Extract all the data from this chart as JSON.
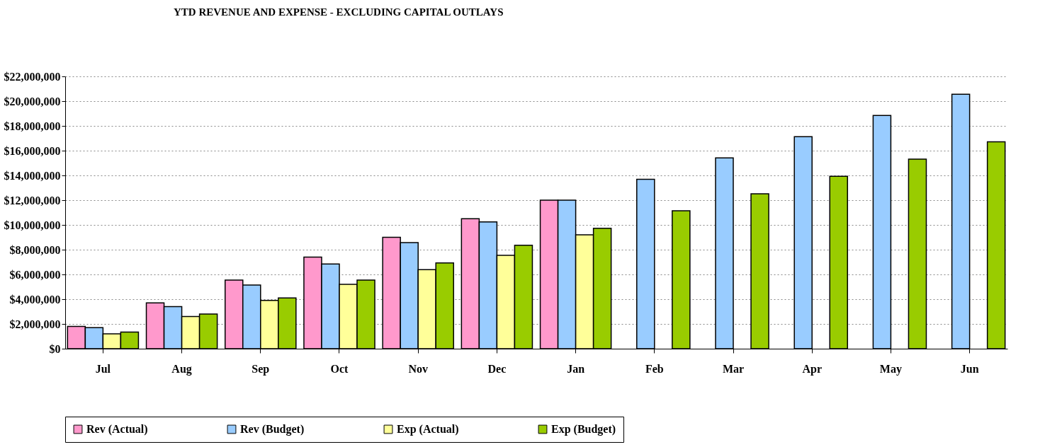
{
  "chart_data": {
    "type": "bar",
    "title": "YTD REVENUE AND EXPENSE - EXCLUDING CAPITAL OUTLAYS",
    "categories": [
      "Jul",
      "Aug",
      "Sep",
      "Oct",
      "Nov",
      "Dec",
      "Jan",
      "Feb",
      "Mar",
      "Apr",
      "May",
      "Jun"
    ],
    "series": [
      {
        "name": "Rev (Actual)",
        "color": "#ff99cc",
        "values": [
          1800000,
          3700000,
          5550000,
          7400000,
          9000000,
          10500000,
          12000000,
          null,
          null,
          null,
          null,
          null
        ]
      },
      {
        "name": "Rev (Budget)",
        "color": "#99ccff",
        "values": [
          1700000,
          3400000,
          5150000,
          6850000,
          8570000,
          10250000,
          12000000,
          13680000,
          15410000,
          17130000,
          18840000,
          20560000
        ]
      },
      {
        "name": "Exp (Actual)",
        "color": "#ffff99",
        "values": [
          1200000,
          2600000,
          3900000,
          5200000,
          6380000,
          7540000,
          9200000,
          null,
          null,
          null,
          null,
          null
        ]
      },
      {
        "name": "Exp (Budget)",
        "color": "#99cc00",
        "values": [
          1350000,
          2800000,
          4100000,
          5550000,
          6930000,
          8360000,
          9730000,
          11140000,
          12520000,
          13930000,
          15310000,
          16710000
        ]
      }
    ],
    "ylim": [
      0,
      22000000
    ],
    "yticks": [
      {
        "value": 0,
        "label": "$0"
      },
      {
        "value": 2000000,
        "label": "$2,000,000"
      },
      {
        "value": 4000000,
        "label": "$4,000,000"
      },
      {
        "value": 6000000,
        "label": "$6,000,000"
      },
      {
        "value": 8000000,
        "label": "$8,000,000"
      },
      {
        "value": 10000000,
        "label": "$10,000,000"
      },
      {
        "value": 12000000,
        "label": "$12,000,000"
      },
      {
        "value": 14000000,
        "label": "$14,000,000"
      },
      {
        "value": 16000000,
        "label": "$16,000,000"
      },
      {
        "value": 18000000,
        "label": "$18,000,000"
      },
      {
        "value": 20000000,
        "label": "$20,000,000"
      },
      {
        "value": 22000000,
        "label": "$22,000,000"
      }
    ],
    "grid": "y",
    "legend": "bottom"
  }
}
